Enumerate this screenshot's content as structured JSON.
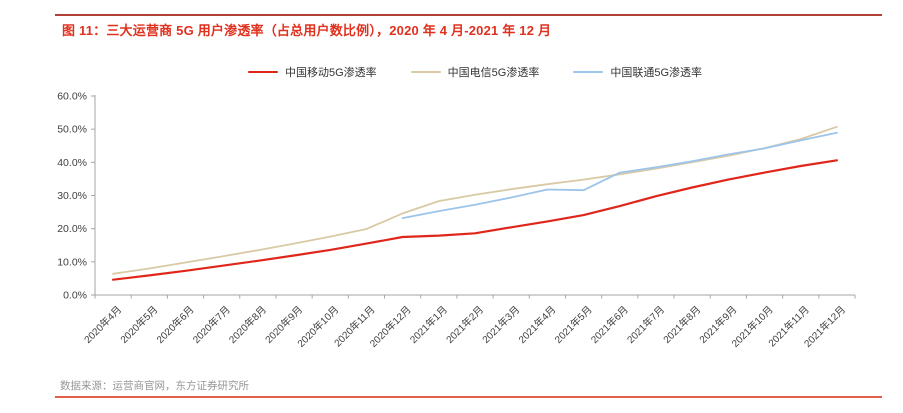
{
  "page": {
    "title": "图 11：三大运营商 5G 用户渗透率（占总用户数比例），2020 年 4 月-2021 年 12 月",
    "source_note": "数据来源：运营商官网，东方证券研究所"
  },
  "colors": {
    "title_red": "#e0301e",
    "top_rule": "#b04138",
    "bottom_rule": "#e2604a",
    "axis": "#a6a6a6",
    "tick_label": "#404040",
    "mobile_red": "#e0261a",
    "telecom_tan": "#d9c9a5",
    "unicom_blue": "#9dc4ea"
  },
  "chart_data": {
    "type": "line",
    "title": "图 11：三大运营商 5G 用户渗透率（占总用户数比例），2020 年 4 月-2021 年 12 月",
    "xlabel": "",
    "ylabel": "",
    "ylim": [
      0,
      60
    ],
    "y_tick_step": 10,
    "y_tick_labels": [
      "0.0%",
      "10.0%",
      "20.0%",
      "30.0%",
      "40.0%",
      "50.0%",
      "60.0%"
    ],
    "grid": false,
    "legend_position": "top",
    "categories": [
      "2020年4月",
      "2020年5月",
      "2020年6月",
      "2020年7月",
      "2020年8月",
      "2020年9月",
      "2020年10月",
      "2020年11月",
      "2020年12月",
      "2021年1月",
      "2021年2月",
      "2021年3月",
      "2021年4月",
      "2021年5月",
      "2021年6月",
      "2021年7月",
      "2021年8月",
      "2021年9月",
      "2021年10月",
      "2021年11月",
      "2021年12月"
    ],
    "series": [
      {
        "name": "中国移动5G渗透率",
        "color": "#e0261a",
        "width": 2.2,
        "values": [
          4.6,
          5.9,
          7.3,
          8.8,
          10.3,
          11.9,
          13.6,
          15.5,
          17.5,
          17.9,
          18.6,
          20.4,
          22.2,
          24.1,
          26.8,
          29.8,
          32.4,
          34.8,
          36.9,
          38.9,
          40.6
        ]
      },
      {
        "name": "中国电信5G渗透率",
        "color": "#d9c9a5",
        "width": 1.8,
        "values": [
          6.4,
          8.0,
          9.8,
          11.6,
          13.5,
          15.5,
          17.6,
          19.9,
          24.6,
          28.3,
          30.2,
          31.9,
          33.4,
          34.8,
          36.4,
          38.1,
          40.0,
          42.0,
          44.3,
          47.0,
          50.7
        ]
      },
      {
        "name": "中国联通5G渗透率",
        "color": "#9dc4ea",
        "width": 1.8,
        "values": [
          null,
          null,
          null,
          null,
          null,
          null,
          null,
          null,
          23.2,
          25.3,
          27.2,
          29.4,
          31.8,
          31.6,
          36.9,
          38.5,
          40.3,
          42.4,
          44.2,
          46.6,
          48.9
        ]
      }
    ]
  }
}
